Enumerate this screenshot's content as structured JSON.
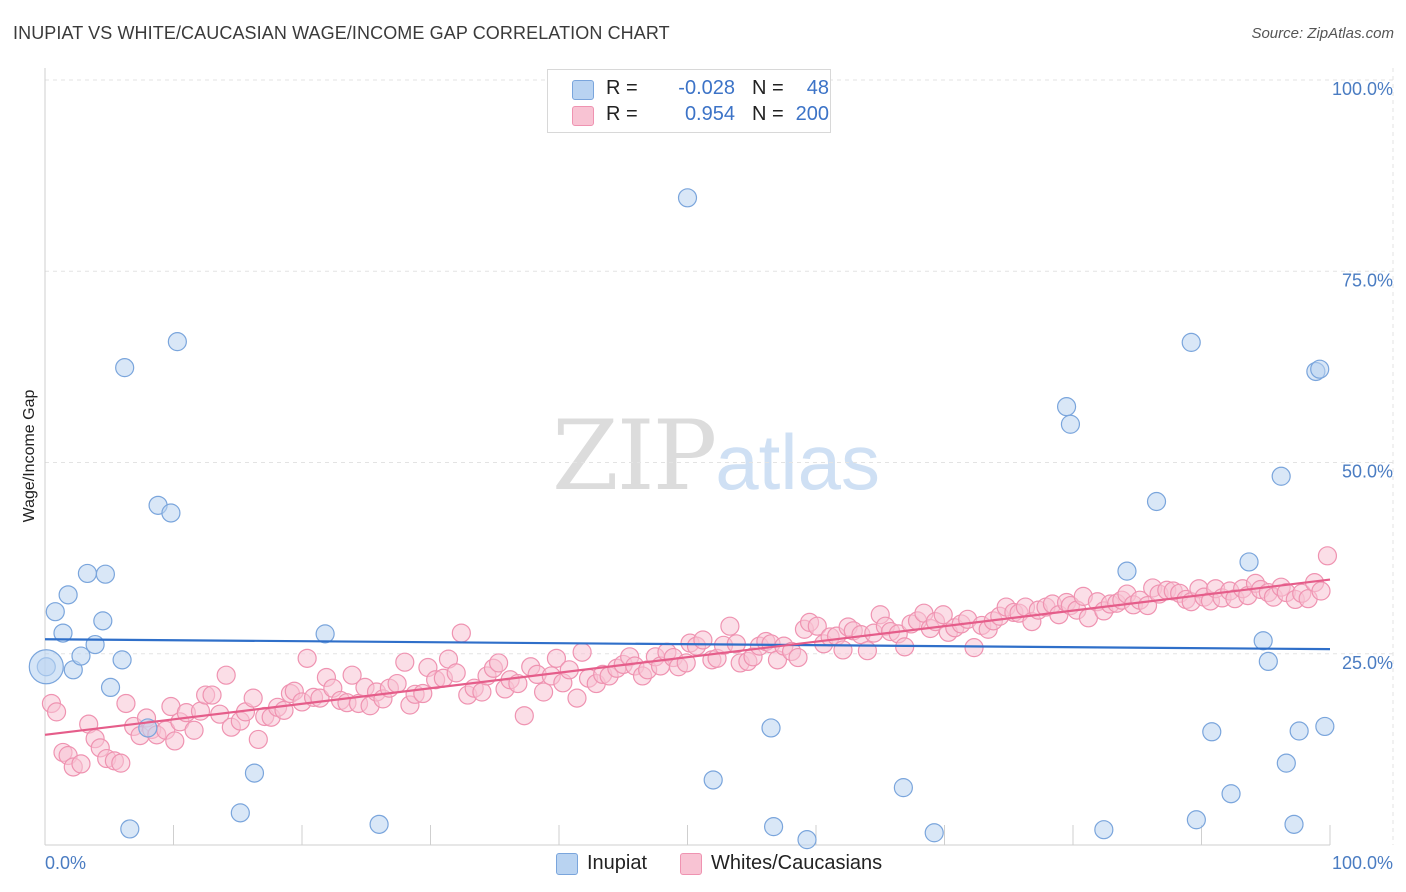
{
  "header": {
    "title": "INUPIAT VS WHITE/CAUCASIAN WAGE/INCOME GAP CORRELATION CHART",
    "source": "Source: ZipAtlas.com"
  },
  "watermark": {
    "zip": "ZIP",
    "atlas": "atlas"
  },
  "legend": {
    "rows": [
      {
        "r_label": "R =",
        "r_value": "-0.028",
        "n_label": "N =",
        "n_value": "48"
      },
      {
        "r_label": "R =",
        "r_value": "0.954",
        "n_label": "N =",
        "n_value": "200"
      }
    ]
  },
  "bottom_legend": {
    "inupiat": "Inupiat",
    "whites": "Whites/Caucasians"
  },
  "chart_data": {
    "type": "scatter",
    "title": "INUPIAT VS WHITE/CAUCASIAN WAGE/INCOME GAP CORRELATION CHART",
    "xlabel": "",
    "ylabel": "Wage/Income Gap",
    "xlim": [
      0,
      100
    ],
    "ylim": [
      0,
      100
    ],
    "x_ticks": [
      "0.0%",
      "100.0%"
    ],
    "y_ticks": [
      {
        "value": 25,
        "label": "25.0%"
      },
      {
        "value": 50,
        "label": "50.0%"
      },
      {
        "value": 75,
        "label": "75.0%"
      },
      {
        "value": 100,
        "label": "100.0%"
      }
    ],
    "grid": true,
    "legend_position": "top-center",
    "colors": {
      "inupiat_fill": "#b9d3f1",
      "inupiat_stroke": "#7aa5dc",
      "inupiat_line": "#2f6fc9",
      "whites_fill": "#f8c3d3",
      "whites_stroke": "#ef93b1",
      "whites_line": "#e55d8a"
    },
    "series": [
      {
        "name": "Inupiat",
        "trend": [
          [
            0,
            26.9
          ],
          [
            100,
            25.6
          ]
        ],
        "points": [
          [
            0.1,
            23.3
          ],
          [
            0.8,
            30.5
          ],
          [
            1.4,
            27.7
          ],
          [
            1.8,
            32.7
          ],
          [
            2.2,
            22.9
          ],
          [
            2.8,
            24.7
          ],
          [
            3.3,
            35.5
          ],
          [
            3.9,
            26.2
          ],
          [
            4.5,
            29.3
          ],
          [
            4.7,
            35.4
          ],
          [
            5.1,
            20.6
          ],
          [
            6.0,
            24.2
          ],
          [
            6.2,
            62.4
          ],
          [
            6.6,
            2.1
          ],
          [
            8.0,
            15.3
          ],
          [
            8.8,
            44.4
          ],
          [
            9.8,
            43.4
          ],
          [
            10.3,
            65.8
          ],
          [
            15.2,
            4.2
          ],
          [
            16.3,
            9.4
          ],
          [
            21.8,
            27.6
          ],
          [
            26.0,
            2.7
          ],
          [
            50.0,
            84.6
          ],
          [
            52.0,
            8.5
          ],
          [
            56.5,
            15.3
          ],
          [
            56.7,
            2.4
          ],
          [
            59.3,
            0.7
          ],
          [
            66.8,
            7.5
          ],
          [
            69.2,
            1.6
          ],
          [
            79.5,
            57.3
          ],
          [
            79.8,
            55.0
          ],
          [
            82.4,
            2.0
          ],
          [
            84.2,
            35.8
          ],
          [
            86.5,
            44.9
          ],
          [
            89.2,
            65.7
          ],
          [
            89.6,
            3.3
          ],
          [
            90.8,
            14.8
          ],
          [
            92.3,
            6.7
          ],
          [
            93.7,
            37.0
          ],
          [
            94.8,
            26.7
          ],
          [
            95.2,
            24.0
          ],
          [
            96.2,
            48.2
          ],
          [
            96.6,
            10.7
          ],
          [
            97.2,
            2.7
          ],
          [
            97.6,
            14.9
          ],
          [
            98.9,
            61.9
          ],
          [
            99.2,
            62.2
          ],
          [
            99.6,
            15.5
          ]
        ]
      },
      {
        "name": "Whites/Caucasians",
        "trend": [
          [
            0,
            14.4
          ],
          [
            100,
            34.7
          ]
        ],
        "points": [
          [
            0.5,
            18.5
          ],
          [
            0.9,
            17.4
          ],
          [
            1.4,
            12.1
          ],
          [
            1.8,
            11.7
          ],
          [
            2.2,
            10.2
          ],
          [
            2.8,
            10.6
          ],
          [
            3.4,
            15.8
          ],
          [
            3.9,
            13.9
          ],
          [
            4.3,
            12.7
          ],
          [
            4.8,
            11.3
          ],
          [
            5.4,
            11.0
          ],
          [
            5.9,
            10.7
          ],
          [
            6.3,
            18.5
          ],
          [
            6.9,
            15.5
          ],
          [
            7.4,
            14.3
          ],
          [
            7.9,
            16.6
          ],
          [
            8.3,
            15.1
          ],
          [
            8.7,
            14.4
          ],
          [
            9.4,
            15.0
          ],
          [
            9.8,
            18.1
          ],
          [
            10.1,
            13.6
          ],
          [
            10.5,
            16.1
          ],
          [
            11.0,
            17.3
          ],
          [
            11.6,
            15.0
          ],
          [
            12.1,
            17.5
          ],
          [
            12.5,
            19.6
          ],
          [
            13.0,
            19.6
          ],
          [
            13.6,
            17.1
          ],
          [
            14.1,
            22.2
          ],
          [
            14.5,
            15.4
          ],
          [
            15.2,
            16.2
          ],
          [
            15.6,
            17.4
          ],
          [
            16.2,
            19.2
          ],
          [
            16.6,
            13.8
          ],
          [
            17.1,
            16.8
          ],
          [
            17.6,
            16.7
          ],
          [
            18.1,
            18.0
          ],
          [
            18.6,
            17.6
          ],
          [
            19.1,
            19.8
          ],
          [
            19.4,
            20.1
          ],
          [
            20.0,
            18.7
          ],
          [
            20.4,
            24.4
          ],
          [
            20.9,
            19.3
          ],
          [
            21.4,
            19.2
          ],
          [
            21.9,
            21.9
          ],
          [
            22.4,
            20.5
          ],
          [
            23.0,
            18.9
          ],
          [
            23.5,
            18.6
          ],
          [
            23.9,
            22.2
          ],
          [
            24.4,
            18.5
          ],
          [
            24.9,
            20.6
          ],
          [
            25.3,
            18.2
          ],
          [
            25.8,
            20.0
          ],
          [
            26.3,
            19.1
          ],
          [
            26.8,
            20.5
          ],
          [
            27.4,
            21.1
          ],
          [
            28.0,
            23.9
          ],
          [
            28.4,
            18.3
          ],
          [
            28.8,
            19.7
          ],
          [
            29.4,
            19.8
          ],
          [
            29.8,
            23.2
          ],
          [
            30.4,
            21.6
          ],
          [
            31.0,
            21.8
          ],
          [
            31.4,
            24.3
          ],
          [
            32.0,
            22.5
          ],
          [
            32.4,
            27.7
          ],
          [
            32.9,
            19.6
          ],
          [
            33.4,
            20.5
          ],
          [
            34.0,
            20.0
          ],
          [
            34.4,
            22.1
          ],
          [
            34.9,
            23.1
          ],
          [
            35.3,
            23.8
          ],
          [
            35.8,
            20.4
          ],
          [
            36.2,
            21.6
          ],
          [
            36.8,
            21.1
          ],
          [
            37.3,
            16.9
          ],
          [
            37.8,
            23.3
          ],
          [
            38.3,
            22.3
          ],
          [
            38.8,
            20.0
          ],
          [
            39.4,
            22.1
          ],
          [
            39.8,
            24.4
          ],
          [
            40.3,
            21.2
          ],
          [
            40.8,
            22.9
          ],
          [
            41.4,
            19.2
          ],
          [
            41.8,
            25.2
          ],
          [
            42.3,
            21.8
          ],
          [
            42.9,
            21.1
          ],
          [
            43.4,
            22.3
          ],
          [
            43.9,
            22.1
          ],
          [
            44.5,
            23.1
          ],
          [
            45.0,
            23.6
          ],
          [
            45.5,
            24.6
          ],
          [
            45.9,
            23.4
          ],
          [
            46.5,
            22.1
          ],
          [
            46.9,
            22.9
          ],
          [
            47.5,
            24.6
          ],
          [
            47.9,
            23.4
          ],
          [
            48.4,
            25.2
          ],
          [
            48.9,
            24.5
          ],
          [
            49.3,
            23.3
          ],
          [
            49.9,
            23.8
          ],
          [
            50.2,
            26.4
          ],
          [
            50.7,
            26.0
          ],
          [
            51.2,
            26.8
          ],
          [
            51.9,
            24.2
          ],
          [
            52.3,
            24.4
          ],
          [
            52.8,
            26.1
          ],
          [
            53.3,
            28.6
          ],
          [
            53.8,
            26.3
          ],
          [
            54.1,
            23.8
          ],
          [
            54.7,
            24.0
          ],
          [
            55.1,
            24.6
          ],
          [
            55.6,
            26.0
          ],
          [
            56.1,
            26.6
          ],
          [
            56.5,
            26.3
          ],
          [
            57.0,
            24.2
          ],
          [
            57.5,
            26.0
          ],
          [
            58.1,
            25.3
          ],
          [
            58.6,
            24.5
          ],
          [
            59.1,
            28.2
          ],
          [
            59.5,
            29.1
          ],
          [
            60.1,
            28.6
          ],
          [
            60.6,
            26.3
          ],
          [
            61.1,
            27.2
          ],
          [
            61.6,
            27.3
          ],
          [
            62.1,
            25.5
          ],
          [
            62.5,
            28.5
          ],
          [
            62.9,
            28.0
          ],
          [
            63.5,
            27.5
          ],
          [
            64.0,
            25.4
          ],
          [
            64.5,
            27.7
          ],
          [
            65.0,
            30.1
          ],
          [
            65.4,
            28.6
          ],
          [
            65.8,
            27.9
          ],
          [
            66.4,
            27.6
          ],
          [
            66.9,
            25.9
          ],
          [
            67.4,
            28.9
          ],
          [
            67.9,
            29.3
          ],
          [
            68.4,
            30.3
          ],
          [
            68.9,
            28.3
          ],
          [
            69.3,
            29.2
          ],
          [
            69.9,
            30.1
          ],
          [
            70.3,
            27.8
          ],
          [
            70.8,
            28.4
          ],
          [
            71.3,
            28.9
          ],
          [
            71.8,
            29.5
          ],
          [
            72.3,
            25.8
          ],
          [
            72.9,
            28.7
          ],
          [
            73.4,
            28.2
          ],
          [
            73.8,
            29.3
          ],
          [
            74.3,
            29.9
          ],
          [
            74.8,
            31.1
          ],
          [
            75.4,
            30.4
          ],
          [
            75.8,
            30.3
          ],
          [
            76.3,
            31.1
          ],
          [
            76.8,
            29.2
          ],
          [
            77.3,
            30.7
          ],
          [
            77.9,
            31.1
          ],
          [
            78.4,
            31.5
          ],
          [
            78.9,
            30.1
          ],
          [
            79.5,
            31.7
          ],
          [
            79.8,
            31.3
          ],
          [
            80.3,
            30.7
          ],
          [
            80.8,
            32.5
          ],
          [
            81.2,
            29.7
          ],
          [
            81.9,
            31.8
          ],
          [
            82.4,
            30.6
          ],
          [
            82.9,
            31.5
          ],
          [
            83.4,
            31.6
          ],
          [
            83.8,
            32.0
          ],
          [
            84.2,
            32.8
          ],
          [
            84.7,
            31.4
          ],
          [
            85.2,
            32.0
          ],
          [
            85.8,
            31.3
          ],
          [
            86.2,
            33.6
          ],
          [
            86.7,
            32.8
          ],
          [
            87.3,
            33.3
          ],
          [
            87.8,
            33.2
          ],
          [
            88.3,
            32.9
          ],
          [
            88.8,
            32.1
          ],
          [
            89.2,
            31.8
          ],
          [
            89.8,
            33.5
          ],
          [
            90.2,
            32.4
          ],
          [
            90.7,
            31.9
          ],
          [
            91.1,
            33.5
          ],
          [
            91.6,
            32.3
          ],
          [
            92.2,
            33.2
          ],
          [
            92.6,
            32.2
          ],
          [
            93.2,
            33.5
          ],
          [
            93.6,
            32.6
          ],
          [
            94.2,
            34.2
          ],
          [
            94.6,
            33.4
          ],
          [
            95.2,
            33.0
          ],
          [
            95.6,
            32.4
          ],
          [
            96.2,
            33.7
          ],
          [
            96.6,
            33.0
          ],
          [
            97.3,
            32.1
          ],
          [
            97.8,
            32.9
          ],
          [
            98.3,
            32.2
          ],
          [
            98.8,
            34.3
          ],
          [
            99.3,
            33.2
          ],
          [
            99.8,
            37.8
          ]
        ]
      }
    ]
  }
}
